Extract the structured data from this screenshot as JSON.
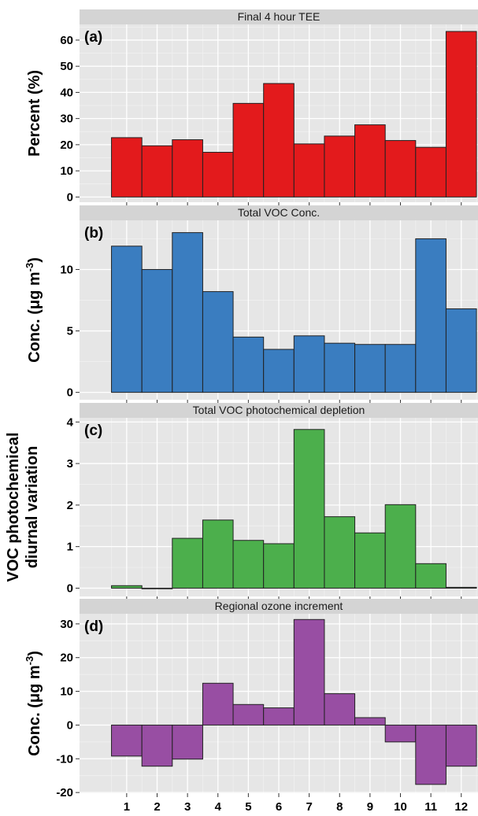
{
  "chart_data": [
    {
      "type": "bar",
      "panel": "(a)",
      "title": "Final 4 hour TEE",
      "ylabel": "Percent (%)",
      "ylabel_lines": [
        "Percent (%)"
      ],
      "categories": [
        "1",
        "2",
        "3",
        "4",
        "5",
        "6",
        "7",
        "8",
        "9",
        "10",
        "11",
        "12"
      ],
      "values": [
        22.7,
        19.6,
        21.9,
        17.1,
        35.8,
        43.4,
        20.3,
        23.3,
        27.6,
        21.6,
        19.0,
        63.3
      ],
      "ylim": [
        -2,
        66
      ],
      "yticks": [
        0,
        10,
        20,
        30,
        40,
        50,
        60
      ],
      "color": "#e31a1c",
      "show_xticklabels": false
    },
    {
      "type": "bar",
      "panel": "(b)",
      "title": "Total VOC Conc.",
      "ylabel": "Conc. (μg m-3)",
      "ylabel_lines": [
        "Conc. (μg m",
        "-3",
        ")"
      ],
      "categories": [
        "1",
        "2",
        "3",
        "4",
        "5",
        "6",
        "7",
        "8",
        "9",
        "10",
        "11",
        "12"
      ],
      "values": [
        11.9,
        10.0,
        13.0,
        8.2,
        4.5,
        3.5,
        4.6,
        4.0,
        3.9,
        3.9,
        12.5,
        6.8
      ],
      "ylim": [
        -0.6,
        14.0
      ],
      "yticks": [
        0,
        5,
        10
      ],
      "color": "#3a7dc0",
      "show_xticklabels": false
    },
    {
      "type": "bar",
      "panel": "(c)",
      "title": "Total VOC photochemical depletion",
      "ylabel": "VOC photochemical diurnal variation",
      "ylabel_lines": [
        "VOC photochemical",
        "diurnal variation"
      ],
      "categories": [
        "1",
        "2",
        "3",
        "4",
        "5",
        "6",
        "7",
        "8",
        "9",
        "10",
        "11",
        "12"
      ],
      "values": [
        0.06,
        0.0,
        1.2,
        1.64,
        1.15,
        1.07,
        3.82,
        1.72,
        1.33,
        2.01,
        0.59,
        0.02
      ],
      "ylim": [
        -0.2,
        4.1
      ],
      "yticks": [
        0,
        1,
        2,
        3,
        4
      ],
      "color": "#4caf4c",
      "show_xticklabels": false
    },
    {
      "type": "bar",
      "panel": "(d)",
      "title": "Regional ozone increment",
      "ylabel": "Conc. (μg m-3)",
      "ylabel_lines": [
        "Conc. (μg m",
        "-3",
        ")"
      ],
      "categories": [
        "1",
        "2",
        "3",
        "4",
        "5",
        "6",
        "7",
        "8",
        "9",
        "10",
        "11",
        "12"
      ],
      "values": [
        -9.2,
        -12.2,
        -10.1,
        12.4,
        6.1,
        5.1,
        31.3,
        9.3,
        2.2,
        -5.0,
        -17.6,
        -12.2
      ],
      "ylim": [
        -20.2,
        33.0
      ],
      "yticks": [
        -20,
        -10,
        0,
        10,
        20,
        30
      ],
      "color": "#984ea3",
      "show_xticklabels": true
    }
  ]
}
